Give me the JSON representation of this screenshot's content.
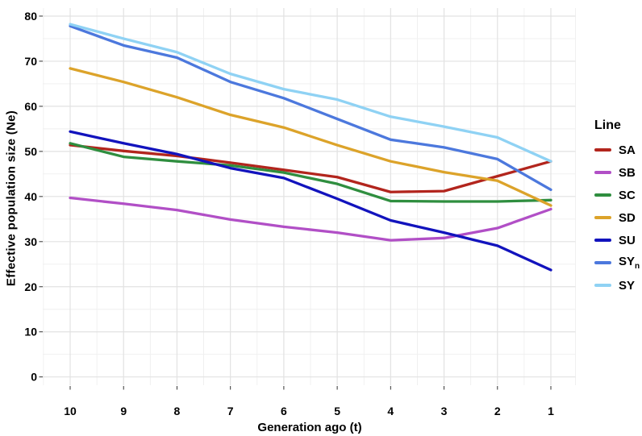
{
  "figure": {
    "background": "#ffffff",
    "tick_color": "#333333",
    "grid_major_color": "#e2e2e2",
    "grid_minor_color": "#efefef",
    "label_color": "#000000"
  },
  "chart_data": {
    "type": "line",
    "title": "",
    "xlabel": "Generation ago (t)",
    "ylabel": "Effective population size (Ne)",
    "x_ticks": [
      10,
      9,
      8,
      7,
      6,
      5,
      4,
      3,
      2,
      1
    ],
    "y_ticks": [
      0,
      10,
      20,
      30,
      40,
      50,
      60,
      70,
      80
    ],
    "ylim": [
      0,
      80
    ],
    "x_axis_reversed": true,
    "grid": "major+minor",
    "legend": {
      "title": "Line",
      "position": "right"
    },
    "categories": [
      10,
      9,
      8,
      7,
      6,
      5,
      4,
      3,
      2,
      1
    ],
    "series": [
      {
        "name": "SA",
        "label": "SA",
        "color": "#b2251d",
        "values": [
          51.4,
          50.1,
          49.0,
          47.5,
          45.9,
          44.3,
          41.0,
          41.2,
          44.5,
          47.8
        ]
      },
      {
        "name": "SB",
        "label": "SB",
        "color": "#b14fc6",
        "values": [
          39.7,
          38.4,
          37.0,
          34.9,
          33.3,
          32.0,
          30.3,
          30.8,
          33.0,
          37.2
        ]
      },
      {
        "name": "SC",
        "label": "SC",
        "color": "#2f8e3f",
        "values": [
          51.8,
          48.8,
          47.8,
          46.9,
          45.3,
          42.8,
          39.0,
          38.9,
          38.9,
          39.2
        ]
      },
      {
        "name": "SD",
        "label": "SD",
        "color": "#dca32a",
        "values": [
          68.4,
          65.4,
          62.0,
          58.1,
          55.3,
          51.4,
          47.8,
          45.4,
          43.5,
          38.0
        ]
      },
      {
        "name": "SU",
        "label": "SU",
        "color": "#1213bd",
        "values": [
          54.4,
          51.8,
          49.4,
          46.3,
          44.1,
          39.5,
          34.7,
          32.0,
          29.1,
          23.7
        ]
      },
      {
        "name": "SYn",
        "label": "SY",
        "label_subscript": "n",
        "color": "#4c78dd",
        "values": [
          77.8,
          73.5,
          70.8,
          65.4,
          61.8,
          57.2,
          52.6,
          50.9,
          48.3,
          41.5
        ]
      },
      {
        "name": "SY",
        "label": "SY",
        "color": "#8fd2f4",
        "values": [
          78.2,
          75.0,
          72.0,
          67.2,
          63.8,
          61.5,
          57.7,
          55.5,
          53.1,
          47.8
        ]
      }
    ]
  }
}
